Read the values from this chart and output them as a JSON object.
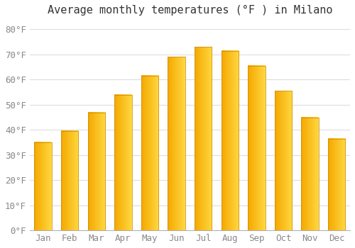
{
  "title": "Average monthly temperatures (°F ) in Milano",
  "months": [
    "Jan",
    "Feb",
    "Mar",
    "Apr",
    "May",
    "Jun",
    "Jul",
    "Aug",
    "Sep",
    "Oct",
    "Nov",
    "Dec"
  ],
  "values": [
    35,
    39.5,
    47,
    54,
    61.5,
    69,
    73,
    71.5,
    65.5,
    55.5,
    45,
    36.5
  ],
  "bar_color_left": "#F5A800",
  "bar_color_right": "#FFD840",
  "bar_color_edge": "#C8860A",
  "background_color": "#FFFFFF",
  "grid_color": "#DDDDDD",
  "text_color": "#888888",
  "title_color": "#333333",
  "ylim": [
    0,
    84
  ],
  "yticks": [
    0,
    10,
    20,
    30,
    40,
    50,
    60,
    70,
    80
  ],
  "ytick_labels": [
    "0°F",
    "10°F",
    "20°F",
    "30°F",
    "40°F",
    "50°F",
    "60°F",
    "70°F",
    "80°F"
  ],
  "title_fontsize": 11,
  "tick_fontsize": 9,
  "bar_width": 0.65
}
